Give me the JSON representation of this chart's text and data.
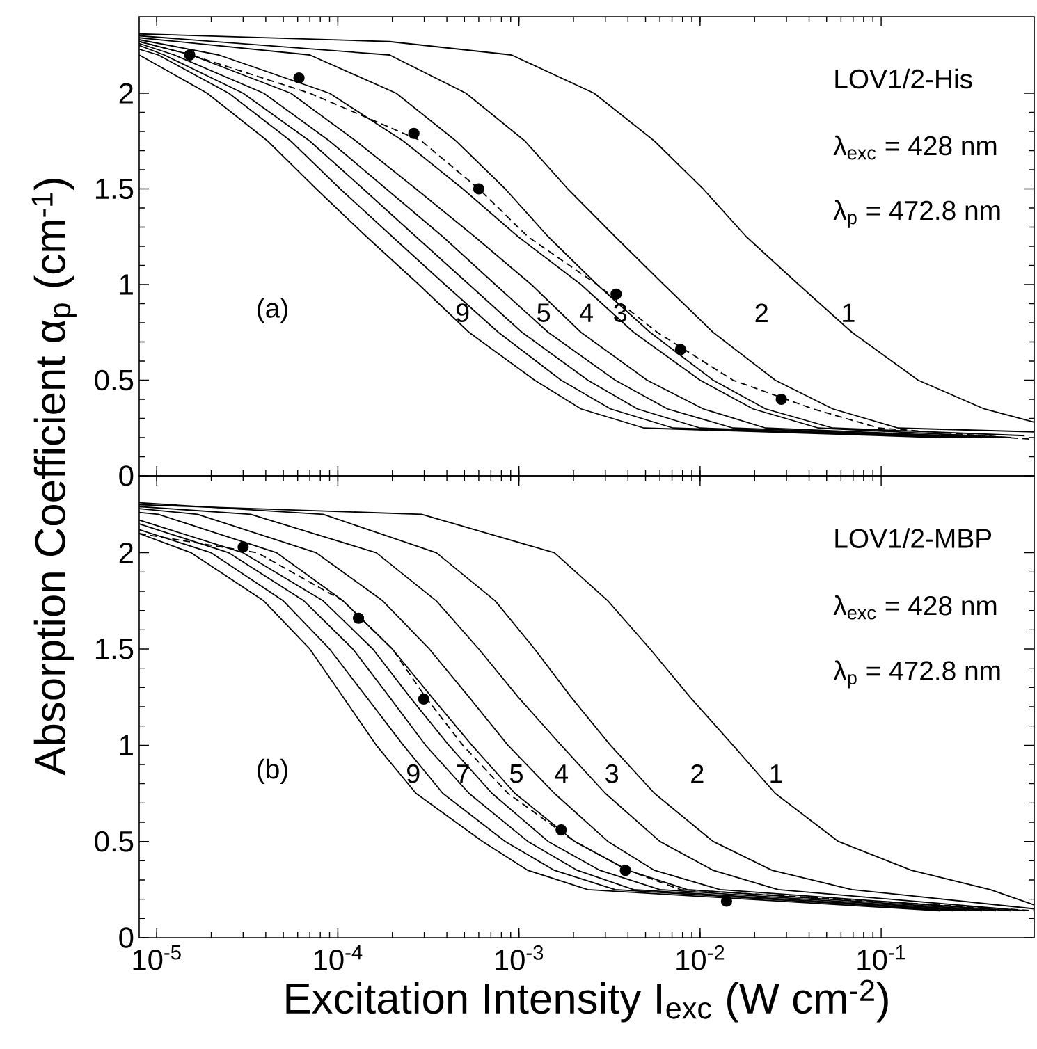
{
  "chart_data": [
    {
      "type": "line",
      "log": "x",
      "tick_labels": "y",
      "ylabel": "Absorption Coefficient  α$_{p}$  (cm$^{-1}$)",
      "xlim": [
        8e-06,
        0.7
      ],
      "ylim": [
        0,
        2.4
      ],
      "xticks": [
        {
          "value": 1e-05,
          "label": null
        },
        {
          "value": 0.0001,
          "label": null
        },
        {
          "value": 0.001,
          "label": null
        },
        {
          "value": 0.01,
          "label": null
        },
        {
          "value": 0.1,
          "label": null
        }
      ],
      "yticks": [
        0,
        0.5,
        1,
        1.5,
        2
      ],
      "series": [
        {
          "type": "line",
          "name": "1",
          "color": "#000000",
          "x": [
            8e-06,
            0.000193,
            0.00091,
            0.0026,
            0.0056,
            0.0104,
            0.018,
            0.035,
            0.069,
            0.16,
            0.37,
            0.7
          ],
          "values": [
            2.31,
            2.27,
            2.2,
            2.0,
            1.75,
            1.5,
            1.25,
            1.0,
            0.75,
            0.5,
            0.35,
            0.28
          ]
        },
        {
          "type": "line",
          "name": "2",
          "color": "#000000",
          "x": [
            8e-06,
            0.000193,
            0.00051,
            0.00108,
            0.00186,
            0.0034,
            0.0063,
            0.0118,
            0.026,
            0.054,
            0.124,
            0.7
          ],
          "values": [
            2.3,
            2.2,
            2.0,
            1.75,
            1.5,
            1.25,
            1.0,
            0.75,
            0.5,
            0.35,
            0.25,
            0.23
          ]
        },
        {
          "type": "line",
          "name": "3",
          "color": "#000000",
          "x": [
            8e-06,
            7e-05,
            0.00021,
            0.00045,
            0.00084,
            0.00145,
            0.0027,
            0.0053,
            0.0118,
            0.023,
            0.054,
            0.62
          ],
          "values": [
            2.29,
            2.2,
            2.0,
            1.75,
            1.5,
            1.25,
            1.0,
            0.75,
            0.5,
            0.35,
            0.25,
            0.21
          ]
        },
        {
          "type": "line",
          "name": "4",
          "color": "#000000",
          "x": [
            8e-06,
            2.2e-05,
            9e-05,
            0.00023,
            0.00049,
            0.00099,
            0.0022,
            0.0043,
            0.01,
            0.0196,
            0.045,
            0.52
          ],
          "values": [
            2.28,
            2.2,
            2.0,
            1.75,
            1.5,
            1.25,
            1.0,
            0.75,
            0.5,
            0.35,
            0.25,
            0.2
          ]
        },
        {
          "type": "line",
          "name": "5",
          "color": "#000000",
          "x": [
            8e-06,
            1.55e-05,
            5.5e-05,
            0.000126,
            0.00027,
            0.00057,
            0.00117,
            0.0022,
            0.0051,
            0.0104,
            0.023,
            0.43
          ],
          "values": [
            2.27,
            2.2,
            2.0,
            1.75,
            1.5,
            1.25,
            1.0,
            0.75,
            0.5,
            0.35,
            0.25,
            0.2
          ]
        },
        {
          "type": "line",
          "color": "#000000",
          "x": [
            8e-06,
            1.25e-05,
            3.9e-05,
            9e-05,
            0.000185,
            0.00038,
            0.00074,
            0.00145,
            0.0034,
            0.0066,
            0.0152,
            0.36
          ],
          "values": [
            2.26,
            2.2,
            2.0,
            1.75,
            1.5,
            1.25,
            1.0,
            0.75,
            0.5,
            0.35,
            0.25,
            0.2
          ]
        },
        {
          "type": "line",
          "color": "#000000",
          "x": [
            8e-06,
            1.1e-05,
            3e-05,
            7e-05,
            0.000138,
            0.00027,
            0.00053,
            0.00104,
            0.0024,
            0.0045,
            0.01,
            0.3
          ],
          "values": [
            2.25,
            2.2,
            2.0,
            1.75,
            1.5,
            1.25,
            1.0,
            0.75,
            0.5,
            0.35,
            0.25,
            0.2
          ]
        },
        {
          "type": "line",
          "color": "#000000",
          "x": [
            8e-06,
            1.02e-05,
            2.5e-05,
            5.5e-05,
            0.000103,
            0.0002,
            0.00039,
            0.00077,
            0.00171,
            0.0032,
            0.0071,
            0.25
          ],
          "values": [
            2.23,
            2.2,
            2.0,
            1.75,
            1.5,
            1.25,
            1.0,
            0.75,
            0.5,
            0.35,
            0.25,
            0.2
          ]
        },
        {
          "type": "line",
          "name": "9",
          "color": "#000000",
          "x": [
            8e-06,
            1.9e-05,
            4.1e-05,
            7.6e-05,
            0.000144,
            0.00028,
            0.00053,
            0.00122,
            0.0022,
            0.0049,
            0.21
          ],
          "values": [
            2.2,
            2.0,
            1.75,
            1.5,
            1.25,
            1.0,
            0.75,
            0.5,
            0.35,
            0.25,
            0.2
          ]
        },
        {
          "type": "line",
          "color": "#000000",
          "line_style": "dashed",
          "x": [
            8e-06,
            1.55e-05,
            7e-05,
            0.00029,
            0.0006,
            0.00112,
            0.0027,
            0.0058,
            0.0152,
            0.042,
            0.097,
            0.7
          ],
          "values": [
            2.27,
            2.2,
            2.0,
            1.75,
            1.5,
            1.25,
            1.0,
            0.75,
            0.5,
            0.35,
            0.25,
            0.19
          ]
        },
        {
          "type": "scatter",
          "color": "#000000",
          "marker": "circle",
          "x": [
            1.52e-05,
            6.1e-05,
            0.000263,
            0.0006,
            0.00344,
            0.0078,
            0.0281
          ],
          "values": [
            2.2,
            2.08,
            1.79,
            1.5,
            0.95,
            0.66,
            0.4
          ]
        }
      ],
      "annotations": [
        "LOV1/2-His",
        "λ$_{exc}$ = 428 nm",
        "λ$_{p}$ = 472.8 nm",
        "(a)"
      ]
    },
    {
      "type": "line",
      "log": "x",
      "xlabel": "Excitation Intensity  I$_{exc}$  (W cm$^{-2}$)",
      "xlim": [
        8e-06,
        0.7
      ],
      "ylim": [
        0,
        2.4
      ],
      "xticks": [
        {
          "value": 1e-05,
          "label": "10$^{-5}$"
        },
        {
          "value": 0.0001,
          "label": "10$^{-4}$"
        },
        {
          "value": 0.001,
          "label": "10$^{-3}$"
        },
        {
          "value": 0.01,
          "label": "10$^{-2}$"
        },
        {
          "value": 0.1,
          "label": "10$^{-1}$"
        }
      ],
      "yticks": [
        0,
        0.5,
        1,
        1.5,
        2
      ],
      "series": [
        {
          "type": "line",
          "name": "1",
          "color": "#000000",
          "x": [
            8e-06,
            0.00029,
            0.00157,
            0.0031,
            0.0053,
            0.0088,
            0.0152,
            0.026,
            0.058,
            0.147,
            0.4,
            0.7
          ],
          "values": [
            2.25,
            2.2,
            2.0,
            1.75,
            1.5,
            1.25,
            1.0,
            0.75,
            0.5,
            0.35,
            0.25,
            0.17
          ]
        },
        {
          "type": "line",
          "name": "2",
          "color": "#000000",
          "x": [
            8e-06,
            8.3e-05,
            0.00035,
            0.00074,
            0.00122,
            0.00194,
            0.0032,
            0.0056,
            0.0118,
            0.025,
            0.069,
            0.7
          ],
          "values": [
            2.26,
            2.2,
            2.0,
            1.75,
            1.5,
            1.25,
            1.0,
            0.75,
            0.5,
            0.35,
            0.25,
            0.15
          ]
        },
        {
          "type": "line",
          "name": "3",
          "color": "#000000",
          "x": [
            8e-06,
            3.3e-05,
            0.000163,
            0.00035,
            0.0006,
            0.00099,
            0.00171,
            0.003,
            0.006,
            0.0118,
            0.027,
            0.62
          ],
          "values": [
            2.24,
            2.2,
            2.0,
            1.75,
            1.5,
            1.25,
            1.0,
            0.75,
            0.5,
            0.35,
            0.25,
            0.14
          ]
        },
        {
          "type": "line",
          "name": "4",
          "color": "#000000",
          "x": [
            8e-06,
            1.68e-05,
            7.6e-05,
            0.000177,
            0.00032,
            0.00053,
            0.00087,
            0.00157,
            0.0031,
            0.0056,
            0.0129,
            0.52
          ],
          "values": [
            2.23,
            2.2,
            2.0,
            1.75,
            1.5,
            1.25,
            1.0,
            0.75,
            0.5,
            0.35,
            0.25,
            0.14
          ]
        },
        {
          "type": "line",
          "name": "5",
          "color": "#000000",
          "x": [
            8e-06,
            1.02e-05,
            4.6e-05,
            0.000107,
            0.0002,
            0.00033,
            0.00055,
            0.00095,
            0.00203,
            0.004,
            0.0085,
            0.43
          ],
          "values": [
            2.21,
            2.2,
            2.0,
            1.75,
            1.5,
            1.25,
            1.0,
            0.75,
            0.5,
            0.35,
            0.25,
            0.14
          ]
        },
        {
          "type": "line",
          "color": "#000000",
          "x": [
            8e-06,
            3e-05,
            8.3e-05,
            0.000156,
            0.00025,
            0.00041,
            0.00071,
            0.00145,
            0.0028,
            0.006,
            0.36
          ],
          "values": [
            2.17,
            2.0,
            1.75,
            1.5,
            1.25,
            1.0,
            0.75,
            0.5,
            0.35,
            0.25,
            0.14
          ]
        },
        {
          "type": "line",
          "name": "7",
          "color": "#000000",
          "x": [
            8e-06,
            2.5e-05,
            6.5e-05,
            0.000121,
            0.000193,
            0.000305,
            0.00053,
            0.00112,
            0.0021,
            0.0043,
            0.3
          ],
          "values": [
            2.15,
            2.0,
            1.75,
            1.5,
            1.25,
            1.0,
            0.75,
            0.5,
            0.35,
            0.25,
            0.14
          ]
        },
        {
          "type": "line",
          "color": "#000000",
          "x": [
            8e-06,
            2e-05,
            5e-05,
            9e-05,
            0.000144,
            0.00023,
            0.00038,
            0.00084,
            0.00157,
            0.0034,
            0.25
          ],
          "values": [
            2.12,
            2.0,
            1.75,
            1.5,
            1.25,
            1.0,
            0.75,
            0.5,
            0.35,
            0.25,
            0.14
          ]
        },
        {
          "type": "line",
          "name": "9",
          "color": "#000000",
          "x": [
            8e-06,
            1.55e-05,
            3.9e-05,
            7e-05,
            0.000107,
            0.000163,
            0.00027,
            0.00063,
            0.00112,
            0.0024,
            0.21
          ],
          "values": [
            2.1,
            2.0,
            1.75,
            1.5,
            1.25,
            1.0,
            0.75,
            0.5,
            0.35,
            0.25,
            0.14
          ]
        },
        {
          "type": "line",
          "color": "#000000",
          "line_style": "dashed",
          "x": [
            8e-06,
            3.6e-05,
            0.000107,
            0.0002,
            0.000305,
            0.00049,
            0.00087,
            0.00203,
            0.004,
            0.0078,
            0.7
          ],
          "values": [
            2.1,
            2.0,
            1.75,
            1.5,
            1.25,
            1.0,
            0.75,
            0.5,
            0.35,
            0.25,
            0.14
          ]
        },
        {
          "type": "scatter",
          "color": "#000000",
          "marker": "circle",
          "x": [
            3e-05,
            0.00013,
            0.000298,
            0.00171,
            0.00387,
            0.014
          ],
          "values": [
            2.03,
            1.66,
            1.24,
            0.56,
            0.35,
            0.19
          ]
        }
      ],
      "annotations": [
        "LOV1/2-MBP",
        "λ$_{exc}$ = 428 nm",
        "λ$_{p}$ = 472.8 nm",
        "(b)"
      ]
    }
  ]
}
